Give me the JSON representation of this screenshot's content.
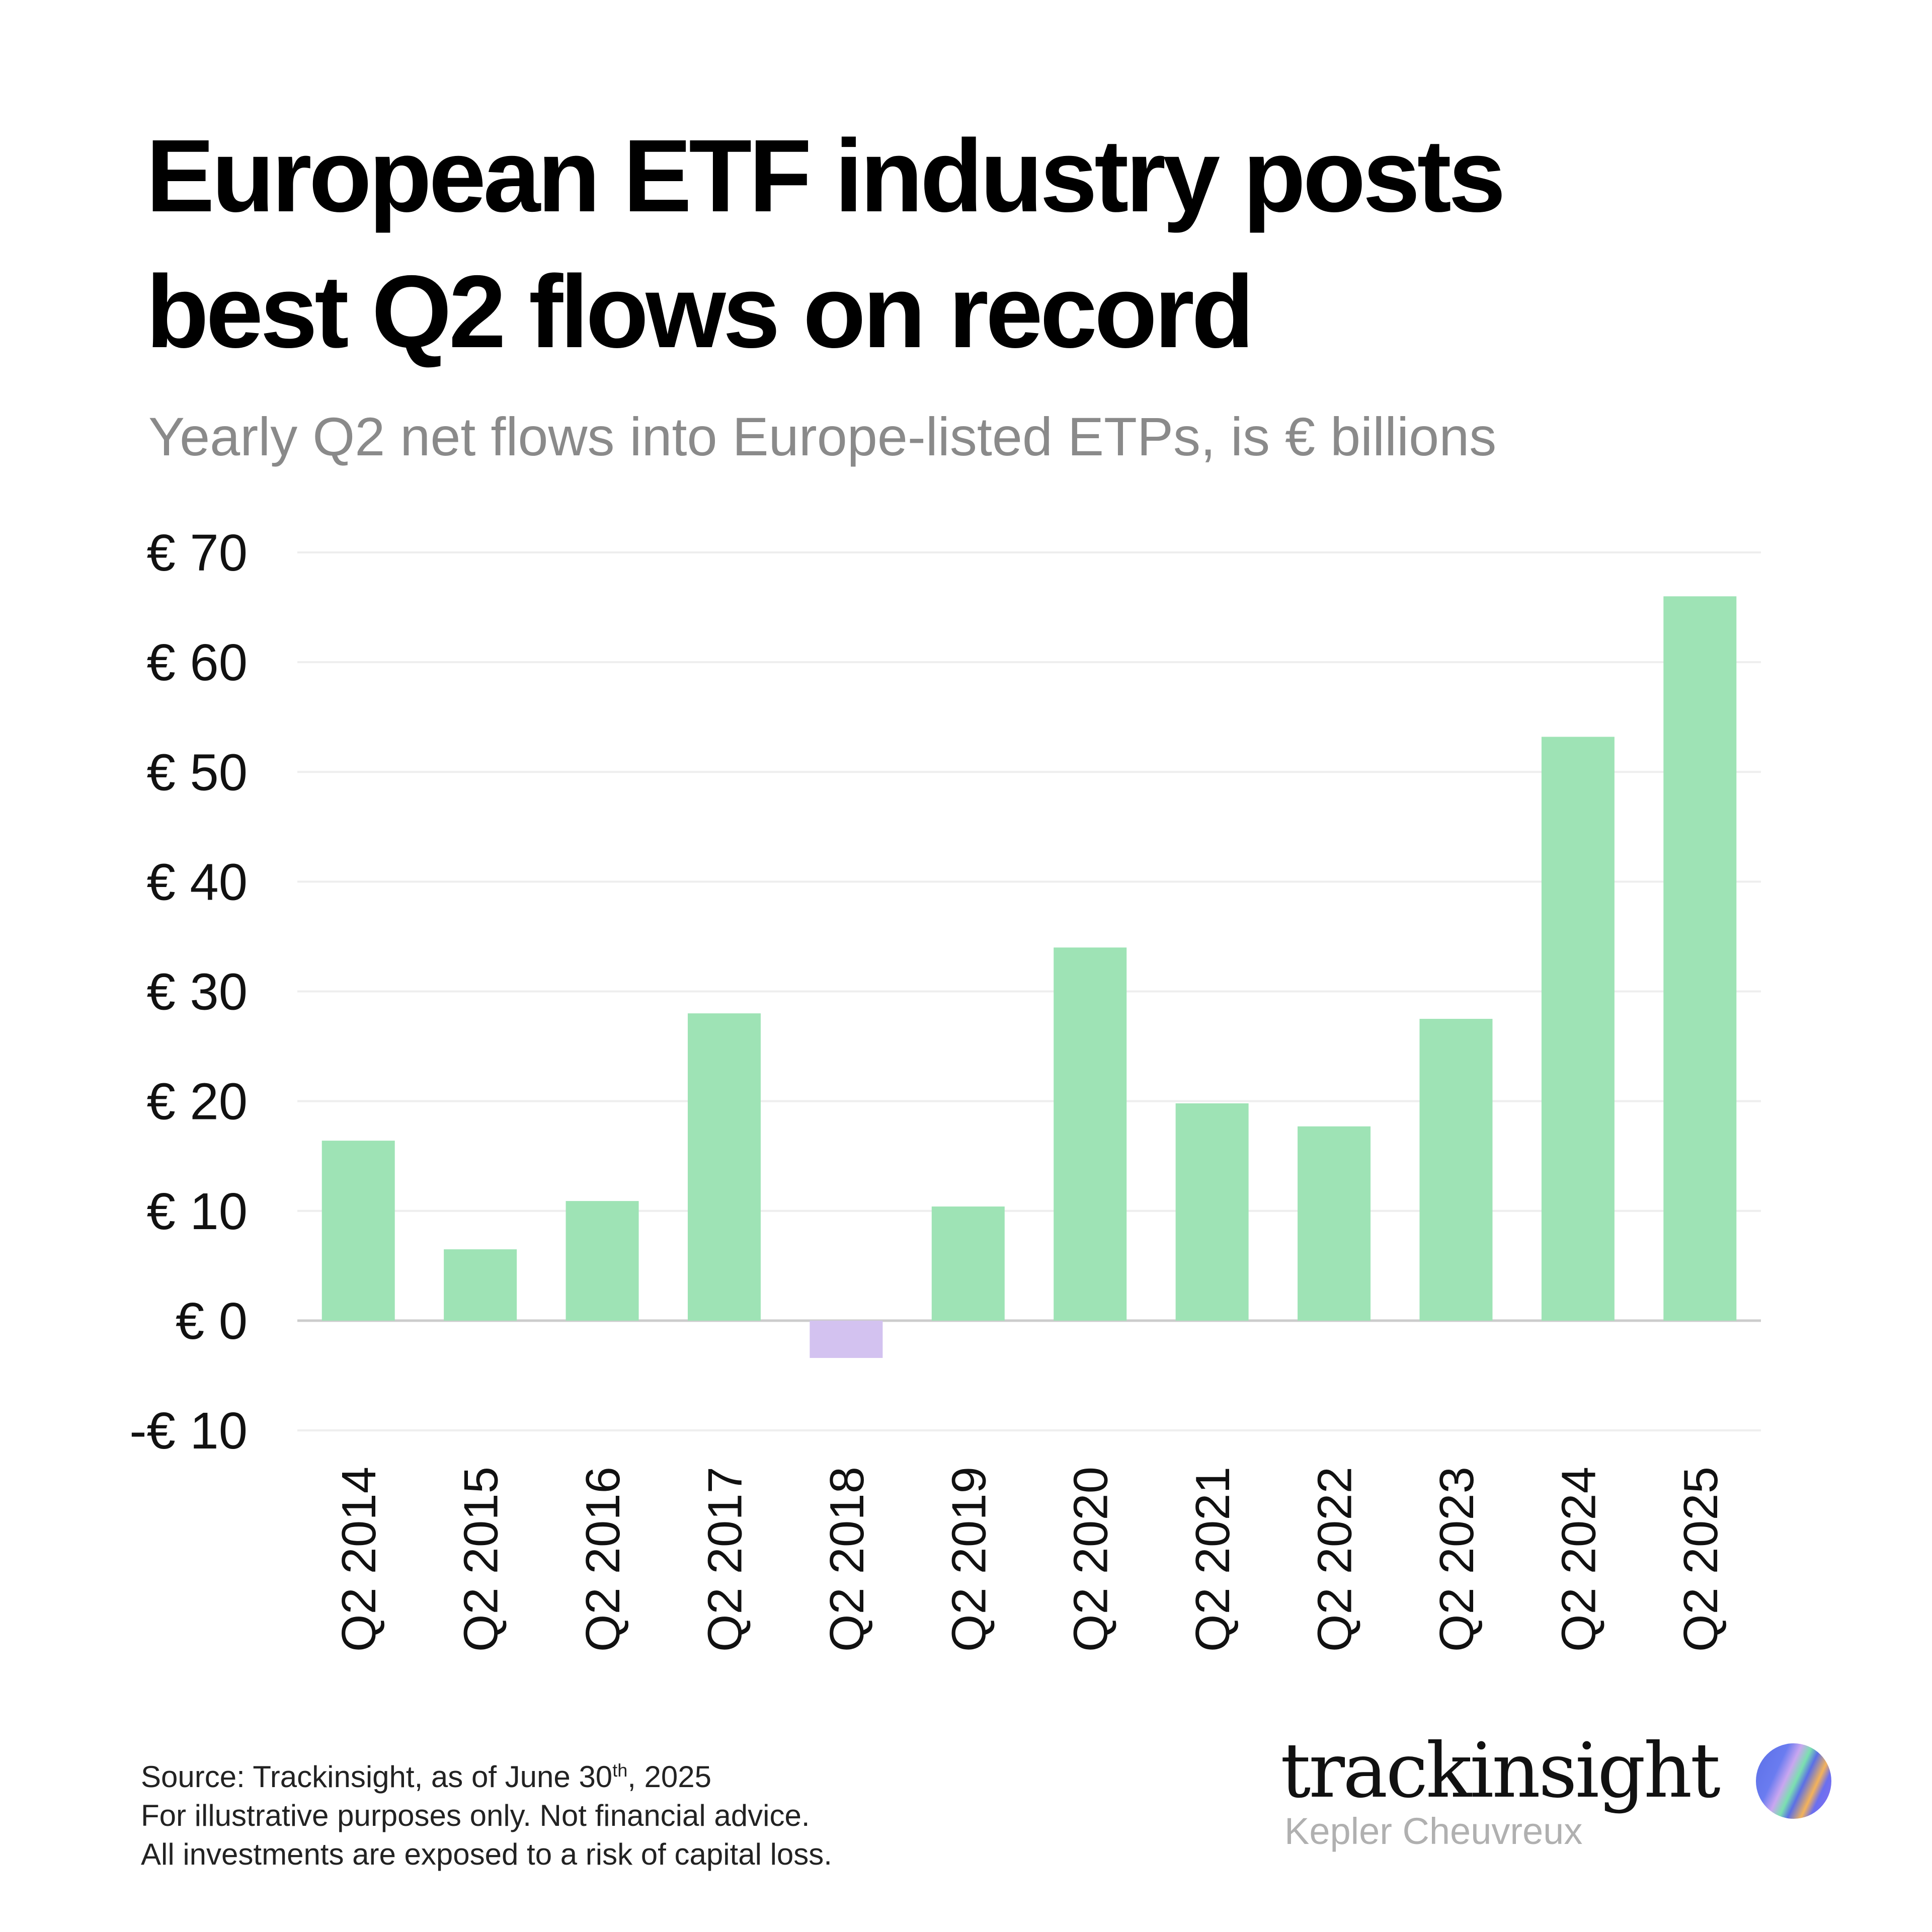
{
  "title_lines": [
    "European ETF industry posts",
    "best Q2 flows on record"
  ],
  "subtitle": "Yearly Q2 net flows into Europe-listed ETPs, is € billions",
  "chart_data": {
    "type": "bar",
    "title": "European ETF industry posts best Q2 flows on record",
    "subtitle": "Yearly Q2 net flows into Europe-listed ETPs, is € billions",
    "categories": [
      "Q2 2014",
      "Q2 2015",
      "Q2 2016",
      "Q2 2017",
      "Q2 2018",
      "Q2 2019",
      "Q2 2020",
      "Q2 2021",
      "Q2 2022",
      "Q2 2023",
      "Q2 2024",
      "Q2 2025"
    ],
    "values": [
      16.4,
      6.5,
      10.9,
      28.0,
      -3.4,
      10.4,
      34.0,
      19.8,
      17.7,
      27.5,
      53.2,
      66.0
    ],
    "ylim": [
      -10,
      70
    ],
    "yticks": [
      70,
      60,
      50,
      40,
      30,
      20,
      10,
      0,
      -10
    ],
    "ytick_labels": [
      "€ 70",
      "€ 60",
      "€ 50",
      "€ 40",
      "€ 30",
      "€ 20",
      "€ 10",
      "€ 0",
      "-€ 10"
    ],
    "grid": true,
    "colors": {
      "positive": "#9ee3b5",
      "negative": "#d3c2f0",
      "grid": "#eeeeee",
      "zero_line": "#cccccc"
    }
  },
  "footer": {
    "source_prefix": "Source: Trackinsight, as of June 30",
    "source_sup": "th",
    "source_suffix": ", 2025",
    "line2": "For illustrative purposes only. Not financial advice.",
    "line3": "All investments are exposed to a risk of capital loss."
  },
  "logo": {
    "wordmark": "trackinsight",
    "partner": "Kepler Cheuvreux"
  }
}
